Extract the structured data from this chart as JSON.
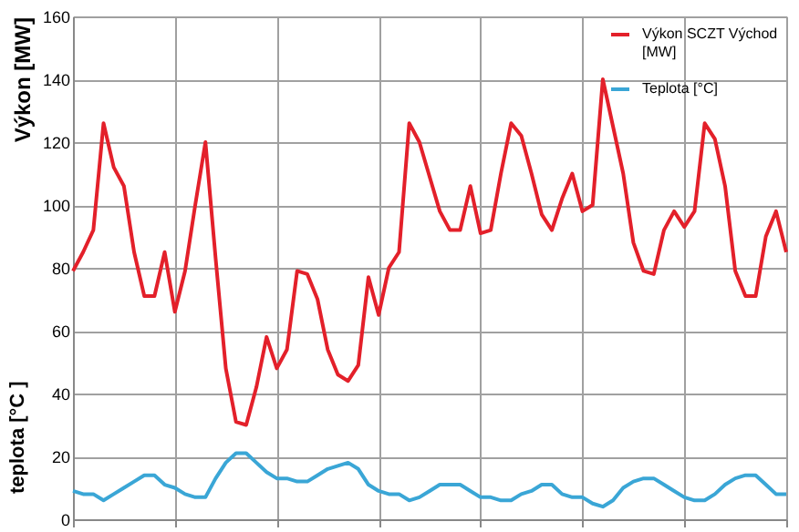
{
  "chart_data": {
    "type": "line",
    "ylabel": "Výkon [MW]",
    "annotations": [
      "teplota [°C ]"
    ],
    "categories": [
      null,
      null,
      null,
      null,
      null,
      null,
      null,
      null,
      null,
      null,
      null,
      null,
      null,
      null,
      null,
      null,
      null,
      null,
      null,
      null,
      null,
      null,
      null,
      null,
      null,
      null,
      null,
      null,
      null,
      null,
      null,
      null,
      null,
      null,
      null,
      null,
      null,
      null,
      null,
      null,
      null,
      null,
      null,
      null,
      null,
      null,
      null,
      null,
      null,
      null,
      null,
      null,
      null,
      null,
      null,
      null,
      null,
      null,
      null,
      null,
      null,
      null,
      null,
      null,
      null,
      null,
      null,
      null,
      null,
      null,
      null
    ],
    "ylim": [
      0,
      160
    ],
    "yticks": [
      0,
      20,
      40,
      60,
      80,
      100,
      120,
      140,
      160
    ],
    "grid": true,
    "legend": "top right",
    "marker": "none",
    "line_style": "solid",
    "series": [
      {
        "name": "Výkon SCZT Východ [MW]",
        "color": "#e3202a",
        "values": [
          79,
          85,
          92,
          126,
          112,
          106,
          85,
          71,
          71,
          85,
          66,
          79,
          100,
          120,
          83,
          48,
          31,
          30,
          42,
          58,
          48,
          54,
          79,
          78,
          70,
          54,
          46,
          44,
          49,
          77,
          65,
          80,
          85,
          126,
          120,
          109,
          98,
          92,
          92,
          106,
          91,
          92,
          110,
          126,
          122,
          110,
          97,
          92,
          102,
          110,
          98,
          100,
          140,
          125,
          110,
          88,
          79,
          78,
          92,
          98,
          93,
          98,
          126,
          121,
          106,
          79,
          71,
          71,
          90,
          98,
          85
        ]
      },
      {
        "name": "Teplota [°C]",
        "color": "#3aa6d6",
        "values": [
          9,
          8,
          8,
          6,
          8,
          10,
          12,
          14,
          14,
          11,
          10,
          8,
          7,
          7,
          13,
          18,
          21,
          21,
          18,
          15,
          13,
          13,
          12,
          12,
          14,
          16,
          17,
          18,
          16,
          11,
          9,
          8,
          8,
          6,
          7,
          9,
          11,
          11,
          11,
          9,
          7,
          7,
          6,
          6,
          8,
          9,
          11,
          11,
          8,
          7,
          7,
          5,
          4,
          6,
          10,
          12,
          13,
          13,
          11,
          9,
          7,
          6,
          6,
          8,
          11,
          13,
          14,
          14,
          11,
          8,
          8
        ]
      }
    ]
  }
}
